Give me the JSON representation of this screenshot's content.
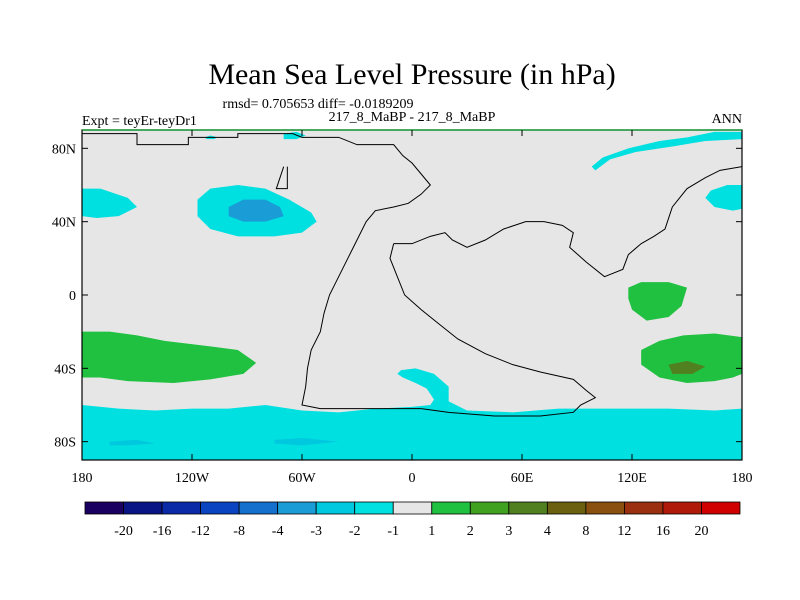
{
  "chart_data": {
    "type": "heatmap",
    "title": "Mean Sea Level Pressure (in hPa)",
    "stats_line": "rmsd= 0.705653 diff= -0.0189209",
    "left_label": "Expt = teyEr-teyDr1",
    "center_label": "217_8_MaBP - 217_8_MaBP",
    "right_label": "ANN",
    "x_ticks": [
      {
        "value": -180,
        "label": "180"
      },
      {
        "value": -120,
        "label": "120W"
      },
      {
        "value": -60,
        "label": "60W"
      },
      {
        "value": 0,
        "label": "0"
      },
      {
        "value": 60,
        "label": "60E"
      },
      {
        "value": 120,
        "label": "120E"
      },
      {
        "value": 180,
        "label": "180"
      }
    ],
    "y_ticks": [
      {
        "value": 80,
        "label": "80N"
      },
      {
        "value": 40,
        "label": "40N"
      },
      {
        "value": 0,
        "label": "0"
      },
      {
        "value": -40,
        "label": "40S"
      },
      {
        "value": -80,
        "label": "80S"
      }
    ],
    "xlim": [
      -180,
      180
    ],
    "ylim": [
      -90,
      90
    ],
    "colorbar": {
      "colors": [
        "#1a0060",
        "#0a1585",
        "#0a2aa8",
        "#0a44c0",
        "#1470cc",
        "#1a9cd6",
        "#00c8de",
        "#00e0e0",
        "#e6e6e6",
        "#20c040",
        "#40a020",
        "#508020",
        "#6a6010",
        "#8a5010",
        "#9a3010",
        "#b01a08",
        "#d00000"
      ],
      "labels": [
        "-20",
        "-16",
        "-12",
        "-8",
        "-4",
        "-3",
        "-2",
        "-1",
        "1",
        "2",
        "3",
        "4",
        "8",
        "12",
        "16",
        "20"
      ]
    },
    "regions": [
      {
        "name": "n-pacific-low",
        "color": "#00e0e0",
        "poly": [
          [
            -117,
            52
          ],
          [
            -110,
            58
          ],
          [
            -95,
            60
          ],
          [
            -80,
            58
          ],
          [
            -67,
            52
          ],
          [
            -55,
            45
          ],
          [
            -52,
            40
          ],
          [
            -60,
            34
          ],
          [
            -75,
            32
          ],
          [
            -95,
            32
          ],
          [
            -110,
            36
          ],
          [
            -117,
            43
          ]
        ]
      },
      {
        "name": "n-pacific-core",
        "color": "#1a9cd6",
        "poly": [
          [
            -100,
            48
          ],
          [
            -92,
            52
          ],
          [
            -80,
            52
          ],
          [
            -72,
            48
          ],
          [
            -70,
            43
          ],
          [
            -80,
            40
          ],
          [
            -92,
            40
          ],
          [
            -100,
            43
          ]
        ]
      },
      {
        "name": "west-edge-n",
        "color": "#00e0e0",
        "poly": [
          [
            -180,
            58
          ],
          [
            -170,
            58
          ],
          [
            -155,
            53
          ],
          [
            -150,
            48
          ],
          [
            -160,
            43
          ],
          [
            -172,
            42
          ],
          [
            -180,
            43
          ]
        ]
      },
      {
        "name": "east-edge-n",
        "color": "#00e0e0",
        "poly": [
          [
            180,
            60
          ],
          [
            172,
            60
          ],
          [
            163,
            57
          ],
          [
            160,
            53
          ],
          [
            165,
            48
          ],
          [
            175,
            46
          ],
          [
            180,
            47
          ]
        ]
      },
      {
        "name": "arctic-strip",
        "color": "#00e0e0",
        "poly": [
          [
            100,
            68
          ],
          [
            108,
            74
          ],
          [
            122,
            78
          ],
          [
            142,
            81
          ],
          [
            160,
            84
          ],
          [
            180,
            85
          ],
          [
            180,
            89
          ],
          [
            165,
            89
          ],
          [
            150,
            86
          ],
          [
            135,
            84
          ],
          [
            118,
            80
          ],
          [
            104,
            75
          ],
          [
            98,
            70
          ]
        ]
      },
      {
        "name": "greenland-blob",
        "color": "#00e0e0",
        "poly": [
          [
            -70,
            88
          ],
          [
            -63,
            89
          ],
          [
            -58,
            87
          ],
          [
            -63,
            85
          ],
          [
            -70,
            85
          ]
        ]
      },
      {
        "name": "small-blob-n",
        "color": "#00e0e0",
        "poly": [
          [
            -113,
            86
          ],
          [
            -110,
            87
          ],
          [
            -106,
            86
          ],
          [
            -108,
            85
          ],
          [
            -112,
            85
          ]
        ]
      },
      {
        "name": "west-s-green",
        "color": "#20c040",
        "poly": [
          [
            -180,
            -20
          ],
          [
            -165,
            -20
          ],
          [
            -150,
            -22
          ],
          [
            -135,
            -25
          ],
          [
            -110,
            -28
          ],
          [
            -95,
            -30
          ],
          [
            -85,
            -37
          ],
          [
            -92,
            -43
          ],
          [
            -110,
            -46
          ],
          [
            -130,
            -48
          ],
          [
            -155,
            -47
          ],
          [
            -170,
            -45
          ],
          [
            -180,
            -45
          ]
        ]
      },
      {
        "name": "east-s-green",
        "color": "#20c040",
        "poly": [
          [
            180,
            -23
          ],
          [
            165,
            -21
          ],
          [
            148,
            -22
          ],
          [
            135,
            -25
          ],
          [
            125,
            -30
          ],
          [
            125,
            -38
          ],
          [
            135,
            -45
          ],
          [
            150,
            -48
          ],
          [
            165,
            -47
          ],
          [
            175,
            -45
          ],
          [
            180,
            -43
          ]
        ]
      },
      {
        "name": "east-s-core",
        "color": "#508020",
        "poly": [
          [
            140,
            -38
          ],
          [
            150,
            -36
          ],
          [
            160,
            -39
          ],
          [
            153,
            -43
          ],
          [
            142,
            -43
          ]
        ]
      },
      {
        "name": "eq-green",
        "color": "#20c040",
        "poly": [
          [
            118,
            4
          ],
          [
            125,
            7
          ],
          [
            140,
            7
          ],
          [
            150,
            4
          ],
          [
            147,
            -6
          ],
          [
            140,
            -12
          ],
          [
            128,
            -14
          ],
          [
            120,
            -8
          ],
          [
            118,
            -2
          ]
        ]
      },
      {
        "name": "southern-band",
        "color": "#00e0e0",
        "poly": [
          [
            -180,
            -60
          ],
          [
            -160,
            -62
          ],
          [
            -140,
            -63
          ],
          [
            -120,
            -62
          ],
          [
            -100,
            -62
          ],
          [
            -80,
            -60
          ],
          [
            -60,
            -63
          ],
          [
            -40,
            -64
          ],
          [
            -20,
            -62
          ],
          [
            0,
            -61
          ],
          [
            10,
            -60
          ],
          [
            12,
            -57
          ],
          [
            8,
            -51
          ],
          [
            2,
            -48
          ],
          [
            -5,
            -45
          ],
          [
            -8,
            -43
          ],
          [
            -6,
            -41
          ],
          [
            2,
            -40
          ],
          [
            12,
            -43
          ],
          [
            20,
            -50
          ],
          [
            20,
            -58
          ],
          [
            30,
            -63
          ],
          [
            55,
            -64
          ],
          [
            80,
            -62
          ],
          [
            110,
            -62
          ],
          [
            140,
            -62
          ],
          [
            165,
            -63
          ],
          [
            180,
            -62
          ],
          [
            180,
            -90
          ],
          [
            -180,
            -90
          ]
        ]
      },
      {
        "name": "southern-band-dots",
        "color": "#00c8de",
        "poly": [
          [
            -165,
            -80
          ],
          [
            -150,
            -79
          ],
          [
            -140,
            -81
          ],
          [
            -155,
            -82
          ],
          [
            -165,
            -82
          ]
        ]
      },
      {
        "name": "southern-band-dots2",
        "color": "#00c8de",
        "poly": [
          [
            -75,
            -79
          ],
          [
            -60,
            -78
          ],
          [
            -40,
            -80
          ],
          [
            -60,
            -82
          ],
          [
            -75,
            -81
          ]
        ]
      }
    ],
    "coastlines": [
      {
        "name": "west-continent",
        "points": [
          [
            -180,
            88
          ],
          [
            -150,
            88
          ],
          [
            -150,
            82
          ],
          [
            -122,
            82
          ],
          [
            -122,
            86
          ],
          [
            -95,
            86
          ],
          [
            -95,
            88
          ],
          [
            -65,
            88
          ],
          [
            -60,
            86
          ],
          [
            -40,
            86
          ],
          [
            -30,
            82
          ],
          [
            -10,
            82
          ],
          [
            -5,
            76
          ],
          [
            0,
            72
          ],
          [
            5,
            66
          ],
          [
            10,
            60
          ],
          [
            5,
            55
          ],
          [
            -2,
            50
          ],
          [
            -10,
            48
          ],
          [
            -20,
            46
          ],
          [
            -25,
            40
          ],
          [
            -30,
            30
          ],
          [
            -35,
            20
          ],
          [
            -40,
            10
          ],
          [
            -45,
            0
          ],
          [
            -48,
            -10
          ],
          [
            -50,
            -20
          ],
          [
            -55,
            -30
          ],
          [
            -57,
            -40
          ],
          [
            -58,
            -50
          ],
          [
            -60,
            -60
          ],
          [
            -50,
            -62
          ],
          [
            -30,
            -62
          ],
          [
            -10,
            -62
          ],
          [
            5,
            -62
          ]
        ]
      },
      {
        "name": "north-eastern-coast",
        "points": [
          [
            -180,
            89
          ],
          [
            -180,
            88
          ]
        ]
      },
      {
        "name": "east-continent",
        "points": [
          [
            -10,
            28
          ],
          [
            0,
            28
          ],
          [
            10,
            32
          ],
          [
            18,
            34
          ],
          [
            22,
            30
          ],
          [
            30,
            26
          ],
          [
            40,
            30
          ],
          [
            50,
            36
          ],
          [
            62,
            40
          ],
          [
            72,
            40
          ],
          [
            82,
            38
          ],
          [
            88,
            34
          ],
          [
            86,
            26
          ],
          [
            95,
            18
          ],
          [
            105,
            10
          ],
          [
            115,
            14
          ],
          [
            118,
            22
          ],
          [
            125,
            28
          ],
          [
            132,
            32
          ],
          [
            138,
            36
          ],
          [
            142,
            48
          ],
          [
            150,
            58
          ],
          [
            160,
            64
          ],
          [
            168,
            68
          ],
          [
            180,
            70
          ]
        ]
      },
      {
        "name": "south-east-continent",
        "points": [
          [
            -10,
            28
          ],
          [
            -12,
            20
          ],
          [
            -8,
            10
          ],
          [
            -4,
            0
          ],
          [
            5,
            -8
          ],
          [
            15,
            -16
          ],
          [
            25,
            -24
          ],
          [
            40,
            -32
          ],
          [
            55,
            -38
          ],
          [
            70,
            -42
          ],
          [
            88,
            -46
          ],
          [
            95,
            -52
          ],
          [
            100,
            -56
          ],
          [
            92,
            -60
          ],
          [
            88,
            -64
          ],
          [
            70,
            -66
          ],
          [
            45,
            -66
          ],
          [
            20,
            -64
          ],
          [
            5,
            -62
          ]
        ]
      },
      {
        "name": "arctic-islands",
        "points": [
          [
            -70,
            70
          ],
          [
            -72,
            64
          ],
          [
            -74,
            58
          ],
          [
            -68,
            58
          ],
          [
            -68,
            70
          ]
        ]
      }
    ]
  }
}
